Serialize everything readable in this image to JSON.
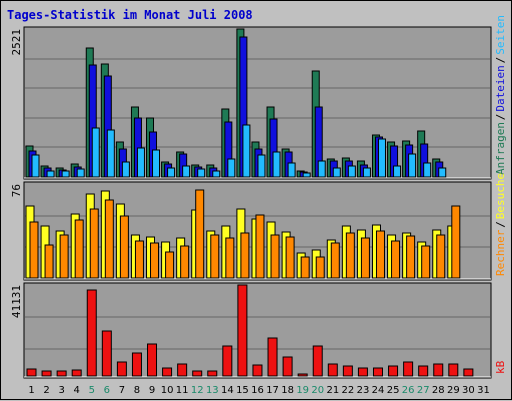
{
  "title": "Tages-Statistik im Monat Juli 2008",
  "colors": {
    "background": "#c0c0c0",
    "panel": "#9c9c9c",
    "title": "#0000cc",
    "anfragen": "#1f7a55",
    "dateien": "#1010dd",
    "seiten": "#22bbff",
    "besuche": "#ffff22",
    "rechner": "#ff8800",
    "kb": "#ee1111",
    "weekend_label": "#1a8a6a",
    "weekday_label": "#000000"
  },
  "chart_data": [
    {
      "type": "bar",
      "panel": "top",
      "ymax_label": "2521",
      "ylim": [
        0,
        2521
      ],
      "legend_right": [
        "Anfragen",
        "Dateien",
        "Seiten"
      ],
      "legend_separator": "/",
      "series": [
        {
          "name": "Anfragen",
          "values": [
            520,
            190,
            160,
            220,
            2200,
            1920,
            600,
            1200,
            1000,
            260,
            430,
            210,
            200,
            1150,
            2521,
            590,
            1200,
            480,
            110,
            1800,
            300,
            320,
            270,
            720,
            590,
            620,
            780,
            310,
            0,
            0,
            0
          ]
        },
        {
          "name": "Dateien",
          "values": [
            440,
            150,
            120,
            170,
            1900,
            1720,
            470,
            1000,
            760,
            220,
            390,
            170,
            160,
            940,
            2380,
            480,
            980,
            430,
            90,
            1200,
            270,
            280,
            210,
            680,
            520,
            540,
            560,
            250,
            0,
            0,
            0
          ]
        },
        {
          "name": "Seiten",
          "values": [
            370,
            110,
            100,
            140,
            830,
            800,
            250,
            500,
            460,
            150,
            180,
            130,
            110,
            300,
            880,
            380,
            420,
            230,
            70,
            280,
            160,
            190,
            160,
            650,
            190,
            400,
            240,
            160,
            0,
            0,
            0
          ]
        }
      ]
    },
    {
      "type": "bar",
      "panel": "middle",
      "ymax_label": "76",
      "ylim": [
        0,
        76
      ],
      "legend_right": [
        "Rechner",
        "Besuche"
      ],
      "legend_separator": "/",
      "series": [
        {
          "name": "Besuche",
          "values": [
            58,
            42,
            38,
            52,
            68,
            70,
            60,
            35,
            33,
            29,
            32,
            55,
            38,
            42,
            56,
            48,
            45,
            37,
            20,
            23,
            31,
            42,
            39,
            43,
            35,
            36,
            29,
            39,
            42,
            0,
            0
          ]
        },
        {
          "name": "Rechner",
          "values": [
            45,
            27,
            35,
            47,
            56,
            63,
            50,
            30,
            28,
            21,
            26,
            71,
            35,
            32,
            36,
            51,
            35,
            33,
            17,
            17,
            28,
            36,
            32,
            38,
            30,
            34,
            26,
            35,
            58,
            0,
            0
          ]
        }
      ]
    },
    {
      "type": "bar",
      "panel": "bottom",
      "ymax_label": "41131",
      "ylim": [
        0,
        41131
      ],
      "legend_right": [
        "kB"
      ],
      "series": [
        {
          "name": "kB",
          "values": [
            3200,
            2100,
            2300,
            2800,
            39000,
            20500,
            6400,
            10500,
            14500,
            3600,
            5600,
            2200,
            2100,
            13600,
            41131,
            4800,
            17000,
            8500,
            1100,
            13500,
            5500,
            4300,
            3400,
            3600,
            4500,
            6400,
            4300,
            5600,
            5300,
            3100,
            0
          ]
        }
      ]
    }
  ],
  "x_ticks": [
    "1",
    "2",
    "3",
    "4",
    "5",
    "6",
    "7",
    "8",
    "9",
    "10",
    "11",
    "12",
    "13",
    "14",
    "15",
    "16",
    "17",
    "18",
    "19",
    "20",
    "21",
    "22",
    "23",
    "24",
    "25",
    "26",
    "27",
    "28",
    "29",
    "30",
    "31"
  ],
  "weekend_days": [
    5,
    6,
    12,
    13,
    19,
    20,
    26,
    27
  ]
}
